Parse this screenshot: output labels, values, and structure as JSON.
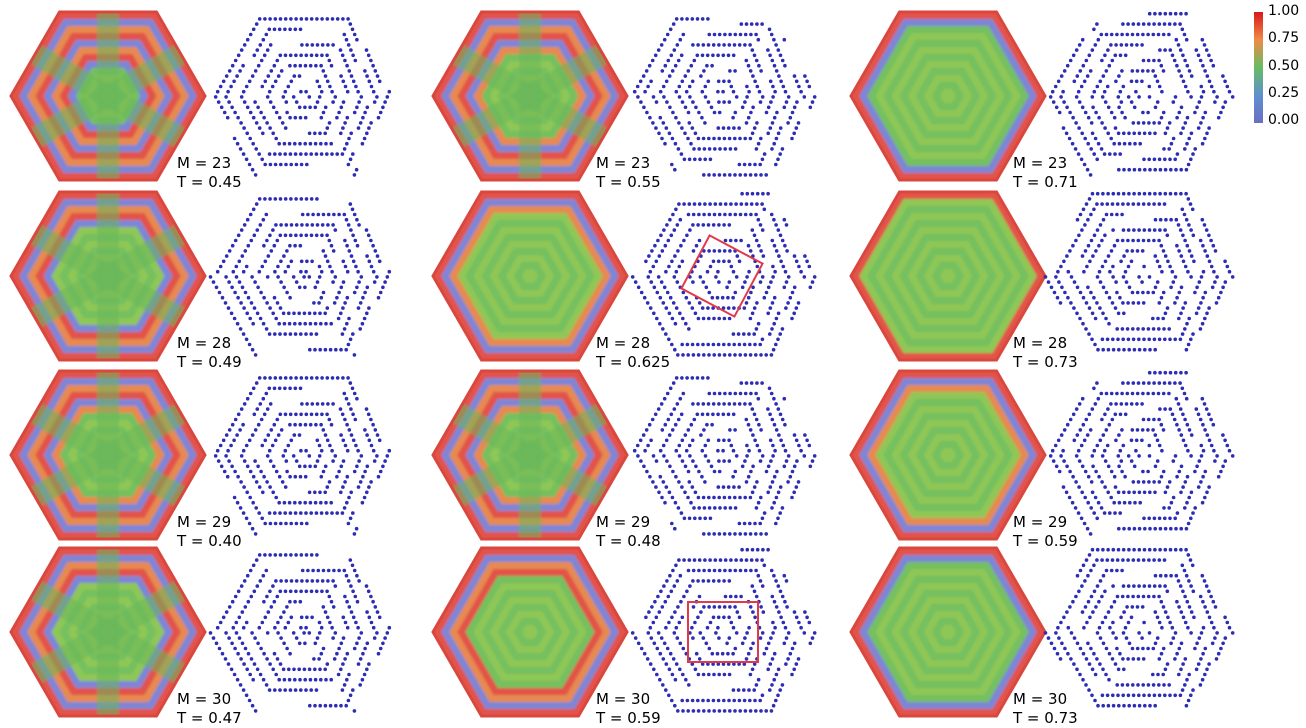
{
  "colorbar": {
    "ticks": [
      "1.00",
      "0.75",
      "0.50",
      "0.25",
      "0.00"
    ],
    "colors": [
      "#d7191c",
      "#f08a45",
      "#66bd63",
      "#5e8fcf",
      "#6a6fc2"
    ]
  },
  "dot_color": "#2c2cb4",
  "highlight_color": "#e0394a",
  "rows": [
    {
      "panels": [
        {
          "m": "M = 23",
          "t": "T = 0.45",
          "g": 0.35
        },
        {
          "m": "M = 23",
          "t": "T = 0.55",
          "g": 0.45
        },
        {
          "m": "M = 23",
          "t": "T = 0.71",
          "g": 0.82
        }
      ]
    },
    {
      "panels": [
        {
          "m": "M = 28",
          "t": "T = 0.49",
          "g": 0.55
        },
        {
          "m": "M = 28",
          "t": "T = 0.625",
          "g": 0.8,
          "highlight": "rotated"
        },
        {
          "m": "M = 28",
          "t": "T = 0.73",
          "g": 0.92
        }
      ]
    },
    {
      "panels": [
        {
          "m": "M = 29",
          "t": "T = 0.40",
          "g": 0.45
        },
        {
          "m": "M = 29",
          "t": "T = 0.48",
          "g": 0.45
        },
        {
          "m": "M = 29",
          "t": "T = 0.59",
          "g": 0.75
        }
      ]
    },
    {
      "panels": [
        {
          "m": "M = 30",
          "t": "T = 0.47",
          "g": 0.55
        },
        {
          "m": "M = 30",
          "t": "T = 0.59",
          "g": 0.72,
          "highlight": "square"
        },
        {
          "m": "M = 30",
          "t": "T = 0.73",
          "g": 0.9
        }
      ]
    }
  ]
}
